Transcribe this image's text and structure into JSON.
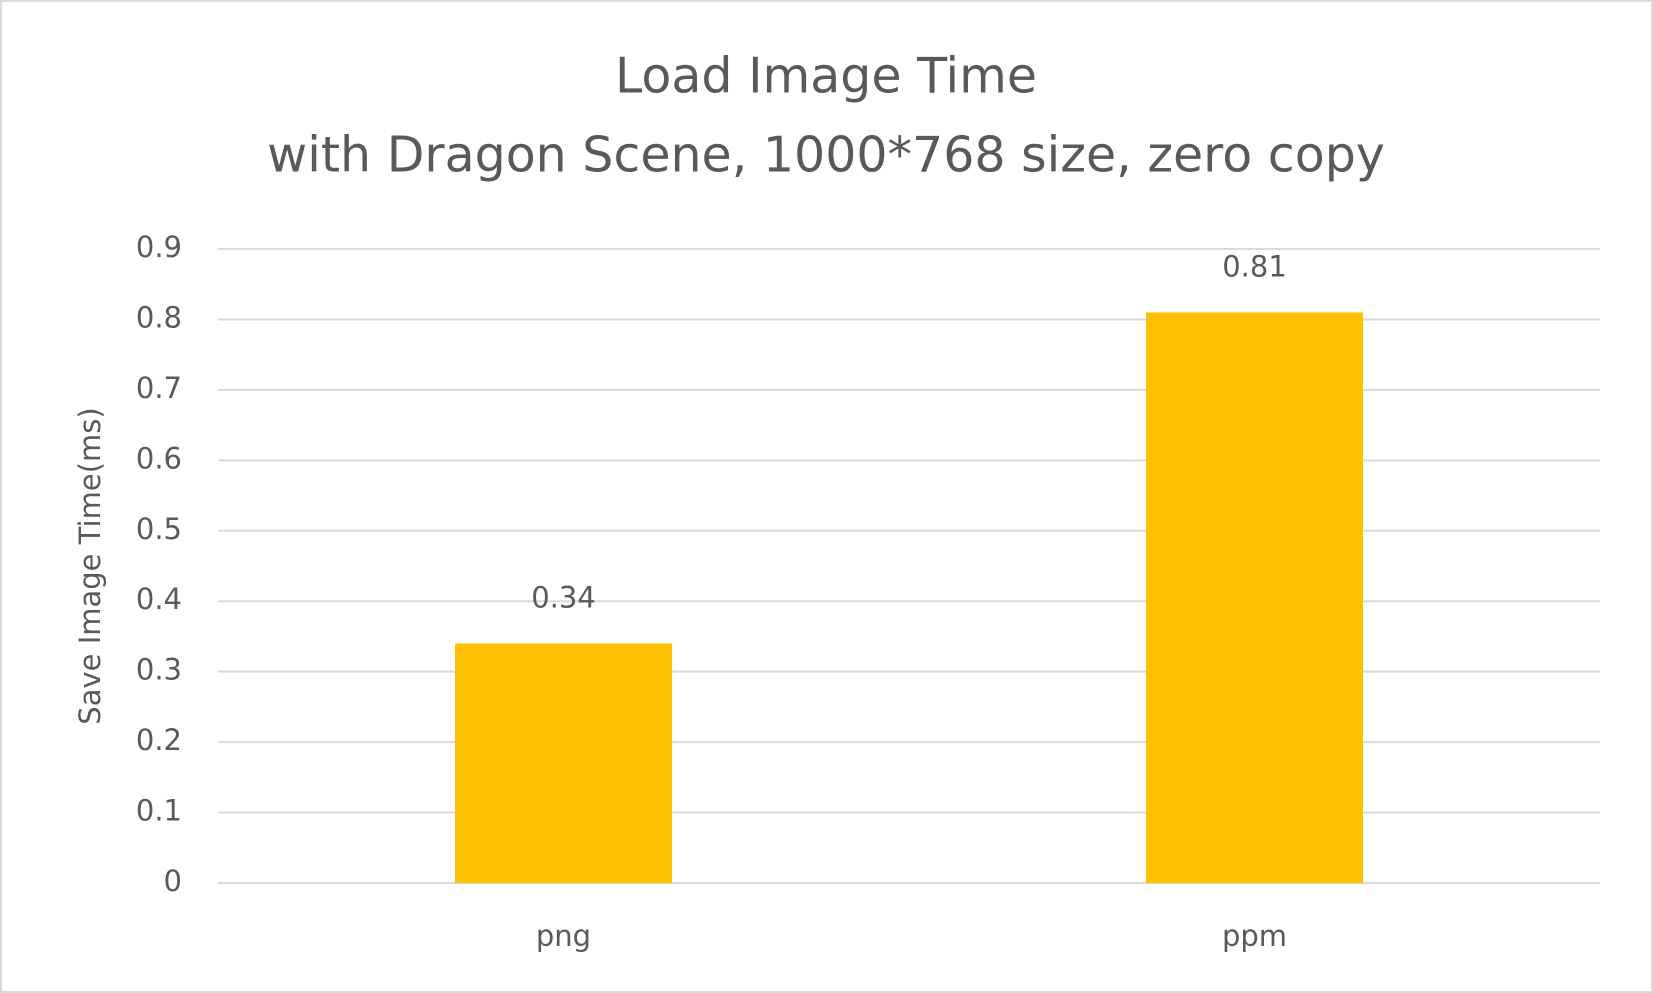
{
  "chart_data": {
    "type": "bar",
    "title": "Load Image Time",
    "subtitle": "with Dragon Scene, 1000*768 size, zero copy",
    "y_label": "Save Image Time(ms)",
    "categories": [
      "png",
      "ppm"
    ],
    "values": [
      0.34,
      0.81
    ],
    "color": "#ffc000",
    "ylim": [
      0,
      0.9
    ],
    "yticks": [
      0,
      0.1,
      0.2,
      0.3,
      0.4,
      0.5,
      0.6,
      0.7,
      0.8,
      0.9
    ],
    "grid": true
  }
}
